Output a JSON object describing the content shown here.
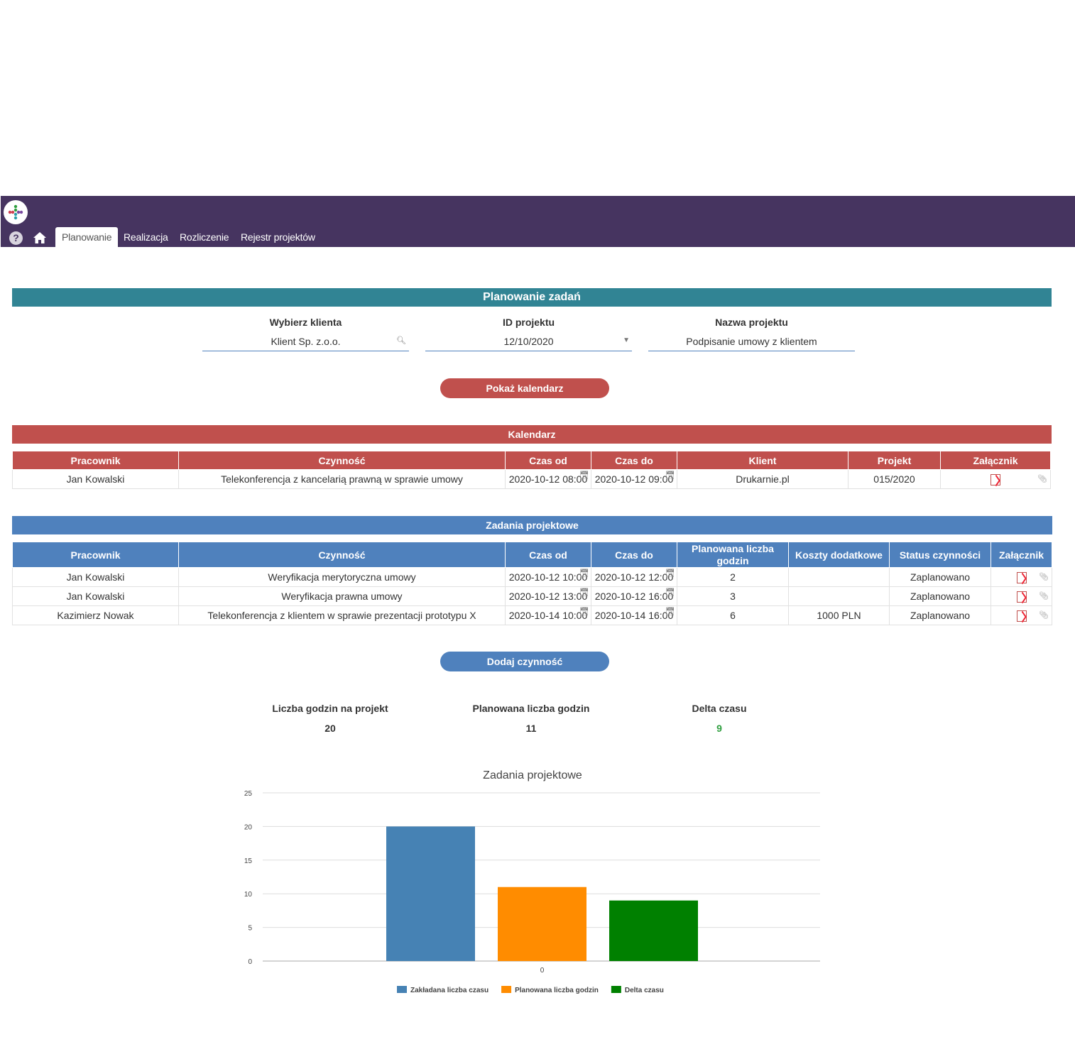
{
  "nav": {
    "tabs": [
      {
        "label": "Planowanie",
        "active": true
      },
      {
        "label": "Realizacja",
        "active": false
      },
      {
        "label": "Rozliczenie",
        "active": false
      },
      {
        "label": "Rejestr projektów",
        "active": false
      }
    ]
  },
  "planning": {
    "title": "Planowanie zadań",
    "client_label": "Wybierz klienta",
    "client_value": "Klient Sp. z.o.o.",
    "project_id_label": "ID projektu",
    "project_id_value": "12/10/2020",
    "project_name_label": "Nazwa projektu",
    "project_name_value": "Podpisanie umowy z klientem",
    "show_calendar_button": "Pokaż kalendarz"
  },
  "calendar": {
    "title": "Kalendarz",
    "headers": [
      "Pracownik",
      "Czynność",
      "Czas od",
      "Czas do",
      "Klient",
      "Projekt",
      "Załącznik"
    ],
    "rows": [
      {
        "employee": "Jan Kowalski",
        "activity": "Telekonferencja z kancelarią prawną w sprawie umowy",
        "from": "2020-10-12 08:00",
        "to": "2020-10-12 09:00",
        "client": "Drukarnie.pl",
        "project": "015/2020"
      }
    ]
  },
  "tasks": {
    "title": "Zadania projektowe",
    "headers": [
      "Pracownik",
      "Czynność",
      "Czas od",
      "Czas do",
      "Planowana liczba godzin",
      "Koszty dodatkowe",
      "Status czynności",
      "Załącznik"
    ],
    "rows": [
      {
        "employee": "Jan Kowalski",
        "activity": "Weryfikacja merytoryczna umowy",
        "from": "2020-10-12 10:00",
        "to": "2020-10-12 12:00",
        "hours": "2",
        "costs": "",
        "status": "Zaplanowano"
      },
      {
        "employee": "Jan Kowalski",
        "activity": "Weryfikacja prawna umowy",
        "from": "2020-10-12 13:00",
        "to": "2020-10-12 16:00",
        "hours": "3",
        "costs": "",
        "status": "Zaplanowano"
      },
      {
        "employee": "Kazimierz Nowak",
        "activity": "Telekonferencja z klientem w sprawie prezentacji prototypu X",
        "from": "2020-10-14 10:00",
        "to": "2020-10-14 16:00",
        "hours": "6",
        "costs": "1000 PLN",
        "status": "Zaplanowano"
      }
    ],
    "add_button": "Dodaj czynność"
  },
  "stats": {
    "hours_label": "Liczba godzin na projekt",
    "hours_value": "20",
    "planned_label": "Planowana liczba godzin",
    "planned_value": "11",
    "delta_label": "Delta czasu",
    "delta_value": "9",
    "delta_color": "#2e9e3e"
  },
  "colors": {
    "topbar": "#463460",
    "teal": "#318494",
    "red": "#c0504d",
    "blue": "#4f81bd"
  },
  "chart_data": {
    "type": "bar",
    "title": "Zadania projektowe",
    "categories": [
      "0"
    ],
    "series": [
      {
        "name": "Zakładana liczba czasu",
        "values": [
          20
        ],
        "color": "#4682b4"
      },
      {
        "name": "Planowana liczba godzin",
        "values": [
          11
        ],
        "color": "#ff8c00"
      },
      {
        "name": "Delta czasu",
        "values": [
          9
        ],
        "color": "#008000"
      }
    ],
    "ylim": [
      0,
      25
    ],
    "yticks": [
      0,
      5,
      10,
      15,
      20,
      25
    ],
    "grid": true,
    "legend": "bottom"
  }
}
